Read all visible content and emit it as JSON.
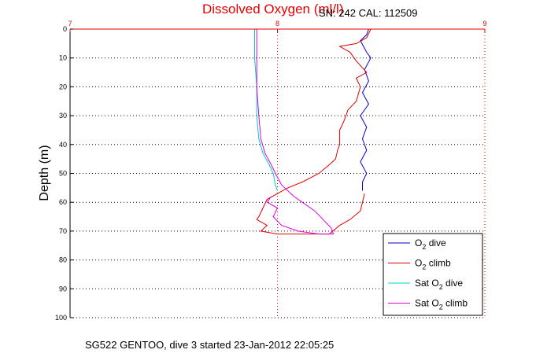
{
  "chart_data": {
    "type": "line",
    "title": "Dissolved Oxygen (ml/l)",
    "annotation": "SN: 242  CAL: 112509",
    "footer": "SG522 GENTOO, dive 3 started 23-Jan-2012 22:05:25",
    "ylabel": "Depth (m)",
    "xlabel": "",
    "xlim": [
      7,
      9
    ],
    "ylim": [
      0,
      100
    ],
    "y_reversed": true,
    "x_axis_position": "top",
    "x_ticks": [
      "7",
      "8",
      "9"
    ],
    "y_ticks": [
      "0",
      "10",
      "20",
      "30",
      "40",
      "50",
      "60",
      "70",
      "80",
      "90",
      "100"
    ],
    "grid": true,
    "legend_position": "bottom-right",
    "series": [
      {
        "name": "O2 dive",
        "color": "#0000cc",
        "points": [
          [
            8.44,
            0
          ],
          [
            8.43,
            2
          ],
          [
            8.4,
            4
          ],
          [
            8.43,
            8
          ],
          [
            8.45,
            10
          ],
          [
            8.42,
            14
          ],
          [
            8.44,
            18
          ],
          [
            8.41,
            22
          ],
          [
            8.44,
            26
          ],
          [
            8.4,
            30
          ],
          [
            8.43,
            34
          ],
          [
            8.41,
            38
          ],
          [
            8.43,
            42
          ],
          [
            8.4,
            46
          ],
          [
            8.43,
            50
          ],
          [
            8.41,
            53
          ],
          [
            8.41,
            56
          ]
        ]
      },
      {
        "name": "O2 climb",
        "color": "#e00000",
        "points": [
          [
            8.45,
            0
          ],
          [
            8.43,
            3
          ],
          [
            8.38,
            5
          ],
          [
            8.3,
            6
          ],
          [
            8.35,
            8
          ],
          [
            8.38,
            11
          ],
          [
            8.43,
            15
          ],
          [
            8.38,
            17
          ],
          [
            8.4,
            20
          ],
          [
            8.38,
            25
          ],
          [
            8.34,
            28
          ],
          [
            8.32,
            32
          ],
          [
            8.3,
            35
          ],
          [
            8.3,
            40
          ],
          [
            8.29,
            42
          ],
          [
            8.28,
            45
          ],
          [
            8.25,
            47
          ],
          [
            8.2,
            50
          ],
          [
            8.12,
            53
          ],
          [
            8.05,
            55
          ],
          [
            8.0,
            57
          ],
          [
            7.95,
            59
          ],
          [
            7.93,
            62
          ],
          [
            7.91,
            65
          ],
          [
            7.9,
            66
          ],
          [
            7.95,
            68
          ],
          [
            7.92,
            70
          ],
          [
            8.0,
            71
          ],
          [
            8.15,
            71
          ],
          [
            8.25,
            71
          ],
          [
            8.3,
            68
          ],
          [
            8.35,
            66
          ],
          [
            8.4,
            63
          ],
          [
            8.41,
            60
          ],
          [
            8.42,
            57
          ]
        ]
      },
      {
        "name": "Sat O2 dive",
        "color": "#00cccc",
        "points": [
          [
            7.89,
            0
          ],
          [
            7.89,
            10
          ],
          [
            7.9,
            20
          ],
          [
            7.9,
            30
          ],
          [
            7.91,
            38
          ],
          [
            7.93,
            43
          ],
          [
            7.96,
            47
          ],
          [
            7.98,
            50
          ],
          [
            7.99,
            54
          ],
          [
            8.0,
            56
          ]
        ]
      },
      {
        "name": "Sat O2 climb",
        "color": "#e000e0",
        "points": [
          [
            7.9,
            0
          ],
          [
            7.9,
            10
          ],
          [
            7.9,
            20
          ],
          [
            7.91,
            30
          ],
          [
            7.92,
            38
          ],
          [
            7.94,
            43
          ],
          [
            7.97,
            47
          ],
          [
            7.99,
            50
          ],
          [
            8.02,
            54
          ],
          [
            8.08,
            58
          ],
          [
            8.12,
            60
          ],
          [
            8.18,
            63
          ],
          [
            8.22,
            66
          ],
          [
            8.26,
            69
          ],
          [
            8.27,
            71
          ],
          [
            8.2,
            71
          ],
          [
            8.1,
            70
          ],
          [
            8.02,
            68
          ],
          [
            7.98,
            65
          ],
          [
            8.0,
            62
          ],
          [
            7.95,
            60
          ],
          [
            7.97,
            58
          ]
        ]
      }
    ],
    "legend_entries": [
      {
        "pre": "O",
        "sub": "2",
        "post": " dive"
      },
      {
        "pre": "O",
        "sub": "2",
        "post": " climb"
      },
      {
        "pre": "Sat O",
        "sub": "2",
        "post": " dive"
      },
      {
        "pre": "Sat O",
        "sub": "2",
        "post": " climb"
      }
    ]
  }
}
